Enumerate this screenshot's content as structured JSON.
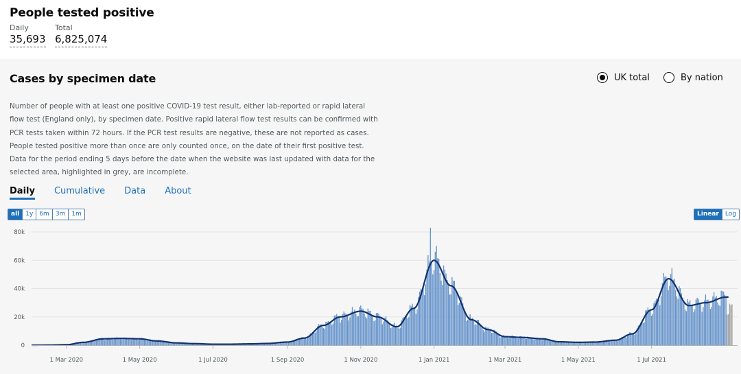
{
  "summary": {
    "title": "People tested positive",
    "daily_label": "Daily",
    "daily_value": "35,693",
    "total_label": "Total",
    "total_value": "6,825,074"
  },
  "card": {
    "title": "Cases by specimen date",
    "radio_uk": "UK total",
    "radio_nation": "By nation",
    "description": "Number of people with at least one positive COVID-19 test result, either lab-reported or rapid lateral flow test (England only), by specimen date. Positive rapid lateral flow test results can be confirmed with PCR tests taken within 72 hours. If the PCR test results are negative, these are not reported as cases. People tested positive more than once are only counted once, on the date of their first positive test. Data for the period ending 5 days before the date when the website was last updated with data for the selected area, highlighted in grey, are incomplete.",
    "tabs": [
      "Daily",
      "Cumulative",
      "Data",
      "About"
    ],
    "ranges": [
      "all",
      "1y",
      "6m",
      "3m",
      "1m"
    ],
    "scales": [
      "Linear",
      "Log"
    ]
  },
  "colors": {
    "bar": "#6a96cc",
    "average": "#12326e",
    "incomplete": "#a3a3a3",
    "link": "#1d70b8"
  },
  "chart_data": {
    "type": "bar",
    "y_ticks": [
      "0",
      "20k",
      "40k",
      "60k",
      "80k"
    ],
    "ylim": [
      0,
      80000
    ],
    "x_ticks": [
      "1 Mar 2020",
      "1 May 2020",
      "1 Jul 2020",
      "1 Sep 2020",
      "1 Nov 2020",
      "1 Jan 2021",
      "1 Mar 2021",
      "1 May 2021",
      "1 Jul 2021"
    ],
    "series": [
      {
        "type": "bar",
        "x": [
          "2020-02-01",
          "2020-02-15",
          "2020-03-01",
          "2020-03-15",
          "2020-04-01",
          "2020-04-15",
          "2020-05-01",
          "2020-05-15",
          "2020-06-01",
          "2020-06-15",
          "2020-07-01",
          "2020-07-15",
          "2020-08-01",
          "2020-08-15",
          "2020-09-01",
          "2020-09-15",
          "2020-10-01",
          "2020-10-15",
          "2020-11-01",
          "2020-11-15",
          "2020-12-01",
          "2020-12-15",
          "2021-01-01",
          "2021-01-15",
          "2021-02-01",
          "2021-02-15",
          "2021-03-01",
          "2021-03-15",
          "2021-04-01",
          "2021-04-15",
          "2021-05-01",
          "2021-05-15",
          "2021-06-01",
          "2021-06-15",
          "2021-07-01",
          "2021-07-15",
          "2021-08-01",
          "2021-08-15",
          "2021-09-01"
        ],
        "y": [
          0,
          50,
          300,
          2000,
          4500,
          4800,
          4500,
          3000,
          1600,
          1100,
          700,
          700,
          900,
          1200,
          2200,
          5000,
          14000,
          20000,
          24000,
          20000,
          13000,
          26000,
          60000,
          42000,
          18000,
          11000,
          6000,
          5500,
          4500,
          2400,
          2000,
          2200,
          3500,
          8000,
          25000,
          47000,
          28000,
          30000,
          34000
        ]
      },
      {
        "type": "line",
        "x": [
          "2020-02-01",
          "2020-02-15",
          "2020-03-01",
          "2020-03-15",
          "2020-04-01",
          "2020-04-15",
          "2020-05-01",
          "2020-05-15",
          "2020-06-01",
          "2020-06-15",
          "2020-07-01",
          "2020-07-15",
          "2020-08-01",
          "2020-08-15",
          "2020-09-01",
          "2020-09-15",
          "2020-10-01",
          "2020-10-15",
          "2020-11-01",
          "2020-11-15",
          "2020-12-01",
          "2020-12-15",
          "2021-01-01",
          "2021-01-15",
          "2021-02-01",
          "2021-02-15",
          "2021-03-01",
          "2021-03-15",
          "2021-04-01",
          "2021-04-15",
          "2021-05-01",
          "2021-05-15",
          "2021-06-01",
          "2021-06-15",
          "2021-07-01",
          "2021-07-15",
          "2021-08-01",
          "2021-08-15",
          "2021-09-01"
        ],
        "y": [
          0,
          50,
          300,
          2000,
          4500,
          4800,
          4500,
          3000,
          1600,
          1100,
          700,
          700,
          900,
          1200,
          2200,
          5000,
          14000,
          20000,
          24000,
          20000,
          13000,
          26000,
          60000,
          42000,
          18000,
          11000,
          6000,
          5500,
          4500,
          2400,
          2000,
          2200,
          3500,
          8000,
          25000,
          47000,
          28000,
          30000,
          34000
        ]
      }
    ],
    "incomplete_period": [
      "2021-09-01",
      "2021-09-06"
    ]
  }
}
